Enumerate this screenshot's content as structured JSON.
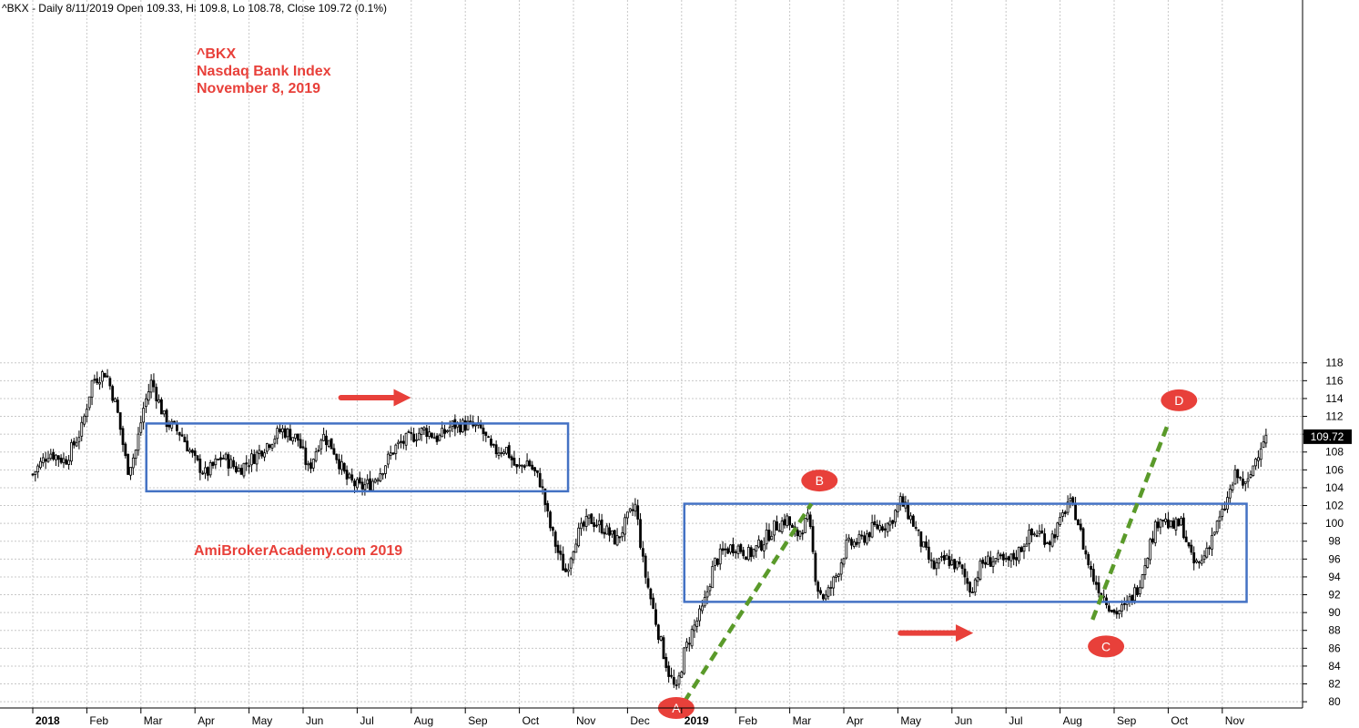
{
  "header": "^BKX - Daily 8/11/2019 Open 109.33, Hi 109.8, Lo 108.78, Close 109.72 (0.1%)",
  "chart_data": {
    "type": "candlestick",
    "title": "",
    "xlabel": "",
    "ylabel": "",
    "ylim": [
      79,
      119
    ],
    "y_ticks": [
      80,
      82,
      84,
      86,
      88,
      90,
      92,
      94,
      96,
      98,
      100,
      102,
      104,
      106,
      108,
      110,
      112,
      114,
      116,
      118
    ],
    "grid": true,
    "x_labels": [
      {
        "label": "2018",
        "month": 0,
        "bold": true
      },
      {
        "label": "Feb",
        "month": 1
      },
      {
        "label": "Mar",
        "month": 2
      },
      {
        "label": "Apr",
        "month": 3
      },
      {
        "label": "May",
        "month": 4
      },
      {
        "label": "Jun",
        "month": 5
      },
      {
        "label": "Jul",
        "month": 6
      },
      {
        "label": "Aug",
        "month": 7
      },
      {
        "label": "Sep",
        "month": 8
      },
      {
        "label": "Oct",
        "month": 9
      },
      {
        "label": "Nov",
        "month": 10
      },
      {
        "label": "Dec",
        "month": 11
      },
      {
        "label": "2019",
        "month": 12,
        "bold": true
      },
      {
        "label": "Feb",
        "month": 13
      },
      {
        "label": "Mar",
        "month": 14
      },
      {
        "label": "Apr",
        "month": 15
      },
      {
        "label": "May",
        "month": 16
      },
      {
        "label": "Jun",
        "month": 17
      },
      {
        "label": "Jul",
        "month": 18
      },
      {
        "label": "Aug",
        "month": 19
      },
      {
        "label": "Sep",
        "month": 20
      },
      {
        "label": "Oct",
        "month": 21
      },
      {
        "label": "Nov",
        "month": 22
      }
    ],
    "price_path": [
      [
        0.0,
        105.5
      ],
      [
        0.3,
        108.0
      ],
      [
        0.6,
        107.0
      ],
      [
        0.9,
        110.5
      ],
      [
        1.1,
        116.0
      ],
      [
        1.35,
        117.0
      ],
      [
        1.55,
        113.0
      ],
      [
        1.75,
        106.0
      ],
      [
        1.9,
        108.0
      ],
      [
        2.05,
        113.0
      ],
      [
        2.2,
        116.0
      ],
      [
        2.45,
        111.5
      ],
      [
        2.75,
        110.0
      ],
      [
        3.0,
        107.0
      ],
      [
        3.2,
        105.5
      ],
      [
        3.5,
        107.5
      ],
      [
        3.8,
        106.0
      ],
      [
        4.1,
        107.5
      ],
      [
        4.35,
        109.0
      ],
      [
        4.6,
        110.5
      ],
      [
        4.9,
        109.5
      ],
      [
        5.1,
        106.0
      ],
      [
        5.35,
        110.0
      ],
      [
        5.55,
        108.5
      ],
      [
        5.8,
        105.0
      ],
      [
        6.05,
        104.0
      ],
      [
        6.25,
        104.5
      ],
      [
        6.45,
        106.0
      ],
      [
        6.7,
        108.5
      ],
      [
        6.95,
        109.5
      ],
      [
        7.25,
        110.5
      ],
      [
        7.5,
        109.5
      ],
      [
        7.75,
        111.0
      ],
      [
        8.05,
        111.0
      ],
      [
        8.3,
        110.5
      ],
      [
        8.5,
        108.0
      ],
      [
        8.75,
        108.5
      ],
      [
        8.95,
        106.0
      ],
      [
        9.15,
        107.0
      ],
      [
        9.4,
        104.5
      ],
      [
        9.55,
        100.0
      ],
      [
        9.7,
        97.0
      ],
      [
        9.85,
        94.5
      ],
      [
        10.05,
        98.5
      ],
      [
        10.3,
        100.5
      ],
      [
        10.55,
        99.5
      ],
      [
        10.8,
        98.0
      ],
      [
        11.0,
        100.5
      ],
      [
        11.15,
        102.0
      ],
      [
        11.3,
        95.0
      ],
      [
        11.45,
        91.0
      ],
      [
        11.6,
        87.0
      ],
      [
        11.75,
        83.5
      ],
      [
        11.9,
        81.0
      ],
      [
        12.05,
        85.5
      ],
      [
        12.2,
        88.0
      ],
      [
        12.4,
        90.5
      ],
      [
        12.6,
        95.5
      ],
      [
        12.8,
        97.0
      ],
      [
        13.0,
        97.5
      ],
      [
        13.25,
        96.5
      ],
      [
        13.45,
        97.5
      ],
      [
        13.7,
        99.5
      ],
      [
        13.95,
        100.5
      ],
      [
        14.1,
        98.5
      ],
      [
        14.35,
        100.5
      ],
      [
        14.5,
        93.0
      ],
      [
        14.65,
        91.5
      ],
      [
        14.85,
        94.0
      ],
      [
        15.05,
        97.5
      ],
      [
        15.3,
        98.0
      ],
      [
        15.55,
        99.5
      ],
      [
        15.85,
        100.0
      ],
      [
        16.05,
        102.5
      ],
      [
        16.25,
        100.5
      ],
      [
        16.45,
        97.5
      ],
      [
        16.65,
        95.0
      ],
      [
        16.9,
        96.0
      ],
      [
        17.15,
        95.0
      ],
      [
        17.35,
        92.5
      ],
      [
        17.55,
        95.5
      ],
      [
        17.8,
        96.0
      ],
      [
        18.0,
        95.5
      ],
      [
        18.2,
        96.5
      ],
      [
        18.4,
        98.5
      ],
      [
        18.6,
        99.0
      ],
      [
        18.8,
        98.0
      ],
      [
        19.0,
        100.0
      ],
      [
        19.15,
        102.5
      ],
      [
        19.3,
        101.0
      ],
      [
        19.45,
        97.0
      ],
      [
        19.6,
        94.0
      ],
      [
        19.8,
        92.0
      ],
      [
        20.0,
        90.0
      ],
      [
        20.2,
        90.5
      ],
      [
        20.45,
        93.0
      ],
      [
        20.65,
        97.5
      ],
      [
        20.85,
        101.0
      ],
      [
        21.05,
        99.5
      ],
      [
        21.25,
        100.0
      ],
      [
        21.45,
        95.5
      ],
      [
        21.6,
        95.5
      ],
      [
        21.8,
        98.5
      ],
      [
        22.0,
        101.0
      ],
      [
        22.25,
        105.5
      ],
      [
        22.45,
        104.0
      ],
      [
        22.6,
        107.0
      ],
      [
        22.75,
        109.5
      ],
      [
        22.85,
        109.7
      ]
    ],
    "last_price_label": "109.72",
    "last_price": 109.72,
    "annotations": {
      "title_lines": [
        "^BKX",
        "Nasdaq Bank Index",
        "November 8, 2019"
      ],
      "watermark": "AmiBrokerAcademy.com   2019",
      "boxes": [
        {
          "x0": 2.1,
          "x1": 9.9,
          "y0": 103.6,
          "y1": 111.2
        },
        {
          "x0": 12.05,
          "x1": 22.45,
          "y0": 91.2,
          "y1": 102.2
        }
      ],
      "trendlines": [
        {
          "x0": 12.05,
          "x1": 14.4,
          "y0": 80.0,
          "y1": 102.2
        },
        {
          "x0": 19.6,
          "x1": 21.0,
          "y0": 89.2,
          "y1": 111.2
        }
      ],
      "arrows": [
        {
          "x0": 5.7,
          "x1": 7.0,
          "y": 114.1
        },
        {
          "x0": 16.05,
          "x1": 17.4,
          "y": 87.7
        }
      ],
      "markers": [
        {
          "label": "A",
          "x": 11.9,
          "y": 79.3
        },
        {
          "label": "B",
          "x": 14.55,
          "y": 104.8
        },
        {
          "label": "C",
          "x": 19.85,
          "y": 86.2
        },
        {
          "label": "D",
          "x": 21.2,
          "y": 113.8
        }
      ]
    }
  },
  "colors": {
    "candle": "#000000",
    "box": "#4472c4",
    "trendline": "#5a9a2a",
    "arrow": "#e8403a",
    "marker": "#e8403a",
    "grid": "#c8c8c8"
  }
}
